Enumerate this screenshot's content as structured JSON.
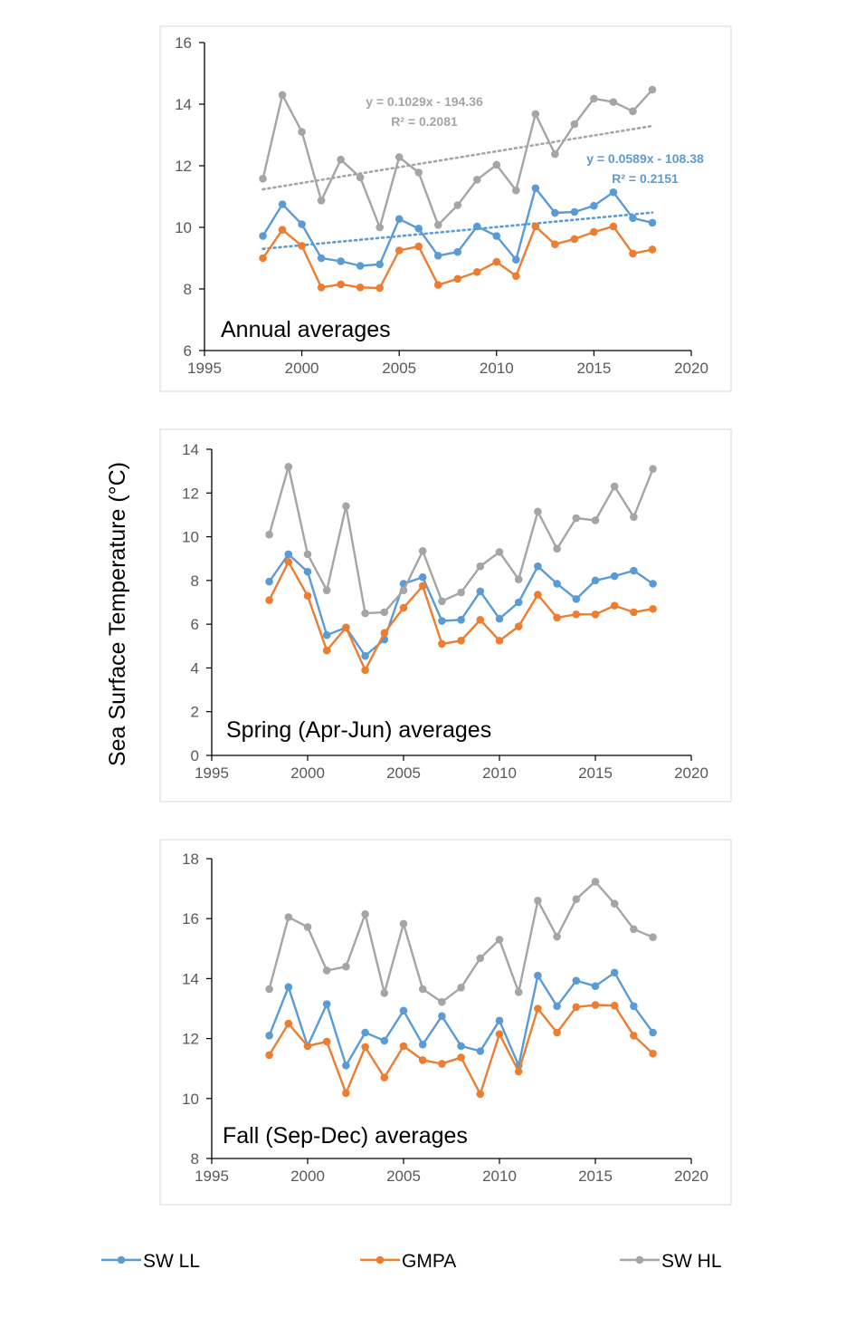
{
  "ylabel": "Sea Surface Temperature (°C)",
  "legend": [
    {
      "name": "SW LL",
      "color": "#5b9bd5"
    },
    {
      "name": "GMPA",
      "color": "#ed7d31"
    },
    {
      "name": "SW HL",
      "color": "#a5a5a5"
    }
  ],
  "chart_data": [
    {
      "type": "line",
      "title": "Annual averages",
      "xlim": [
        1995,
        2020
      ],
      "ylim": [
        6,
        16
      ],
      "xticks": [
        1995,
        2000,
        2005,
        2010,
        2015,
        2020
      ],
      "yticks": [
        6,
        8,
        10,
        12,
        14,
        16
      ],
      "x": [
        1998,
        1999,
        2000,
        2001,
        2002,
        2003,
        2004,
        2005,
        2006,
        2007,
        2008,
        2009,
        2010,
        2011,
        2012,
        2013,
        2014,
        2015,
        2016,
        2017,
        2018
      ],
      "series": [
        {
          "name": "SW LL",
          "color": "#5b9bd5",
          "values": [
            9.72,
            10.75,
            10.1,
            9.0,
            8.9,
            8.75,
            8.8,
            10.27,
            9.96,
            9.08,
            9.2,
            10.03,
            9.72,
            8.95,
            11.27,
            10.47,
            10.5,
            10.7,
            11.14,
            10.3,
            10.15
          ]
        },
        {
          "name": "GMPA",
          "color": "#ed7d31",
          "values": [
            9.0,
            9.92,
            9.4,
            8.05,
            8.15,
            8.05,
            8.03,
            9.25,
            9.38,
            8.13,
            8.33,
            8.55,
            8.88,
            8.42,
            10.03,
            9.45,
            9.62,
            9.85,
            10.03,
            9.15,
            9.28
          ]
        },
        {
          "name": "SW HL",
          "color": "#a5a5a5",
          "values": [
            11.58,
            14.3,
            13.1,
            10.87,
            12.2,
            11.62,
            10.0,
            12.28,
            11.78,
            10.08,
            10.72,
            11.55,
            12.03,
            11.2,
            13.68,
            12.38,
            13.35,
            14.18,
            14.07,
            13.77,
            14.47
          ]
        }
      ],
      "trendlines": [
        {
          "series": "SW HL",
          "color": "#a5a5a5",
          "slope": 0.1029,
          "intercept": -194.36,
          "equation": "y = 0.1029x - 194.36",
          "r2": "R² = 0.2081"
        },
        {
          "series": "SW LL",
          "color": "#5b9bd5",
          "slope": 0.0589,
          "intercept": -108.38,
          "equation": "y = 0.0589x - 108.38",
          "r2": "R² = 0.2151"
        }
      ]
    },
    {
      "type": "line",
      "title": "Spring (Apr-Jun) averages",
      "xlim": [
        1995,
        2020
      ],
      "ylim": [
        0,
        14
      ],
      "xticks": [
        1995,
        2000,
        2005,
        2010,
        2015,
        2020
      ],
      "yticks": [
        0,
        2,
        4,
        6,
        8,
        10,
        12,
        14
      ],
      "x": [
        1998,
        1999,
        2000,
        2001,
        2002,
        2003,
        2004,
        2005,
        2006,
        2007,
        2008,
        2009,
        2010,
        2011,
        2012,
        2013,
        2014,
        2015,
        2016,
        2017,
        2018
      ],
      "series": [
        {
          "name": "SW LL",
          "color": "#5b9bd5",
          "values": [
            7.95,
            9.2,
            8.4,
            5.5,
            5.85,
            4.55,
            5.3,
            7.85,
            8.15,
            6.15,
            6.2,
            7.5,
            6.25,
            7.0,
            8.65,
            7.85,
            7.15,
            8.0,
            8.2,
            8.45,
            7.85
          ]
        },
        {
          "name": "GMPA",
          "color": "#ed7d31",
          "values": [
            7.1,
            8.85,
            7.3,
            4.8,
            5.85,
            3.9,
            5.6,
            6.75,
            7.75,
            5.1,
            5.25,
            6.2,
            5.25,
            5.9,
            7.35,
            6.3,
            6.45,
            6.45,
            6.85,
            6.55,
            6.7
          ]
        },
        {
          "name": "SW HL",
          "color": "#a5a5a5",
          "values": [
            10.1,
            13.2,
            9.2,
            7.55,
            11.4,
            6.5,
            6.55,
            7.55,
            9.35,
            7.05,
            7.45,
            8.65,
            9.3,
            8.05,
            11.15,
            9.45,
            10.85,
            10.75,
            12.3,
            10.9,
            13.1
          ]
        }
      ]
    },
    {
      "type": "line",
      "title": "Fall (Sep-Dec) averages",
      "xlim": [
        1995,
        2020
      ],
      "ylim": [
        8,
        18
      ],
      "xticks": [
        1995,
        2000,
        2005,
        2010,
        2015,
        2020
      ],
      "yticks": [
        8,
        10,
        12,
        14,
        16,
        18
      ],
      "x": [
        1998,
        1999,
        2000,
        2001,
        2002,
        2003,
        2004,
        2005,
        2006,
        2007,
        2008,
        2009,
        2010,
        2011,
        2012,
        2013,
        2014,
        2015,
        2016,
        2017,
        2018
      ],
      "series": [
        {
          "name": "SW LL",
          "color": "#5b9bd5",
          "values": [
            12.1,
            13.72,
            11.75,
            13.15,
            11.1,
            12.2,
            11.93,
            12.93,
            11.8,
            12.75,
            11.75,
            11.58,
            12.6,
            11.1,
            14.1,
            13.08,
            13.93,
            13.75,
            14.2,
            13.08,
            12.2
          ]
        },
        {
          "name": "GMPA",
          "color": "#ed7d31",
          "values": [
            11.45,
            12.5,
            11.75,
            11.9,
            10.18,
            11.72,
            10.7,
            11.75,
            11.28,
            11.16,
            11.37,
            10.15,
            12.15,
            10.9,
            13.0,
            12.2,
            13.05,
            13.12,
            13.1,
            12.1,
            11.5
          ]
        },
        {
          "name": "SW HL",
          "color": "#a5a5a5",
          "values": [
            13.65,
            16.05,
            15.72,
            14.27,
            14.4,
            16.15,
            13.52,
            15.83,
            13.65,
            13.22,
            13.7,
            14.68,
            15.3,
            13.55,
            16.6,
            15.4,
            16.65,
            17.23,
            16.5,
            15.65,
            15.38
          ]
        }
      ]
    }
  ]
}
